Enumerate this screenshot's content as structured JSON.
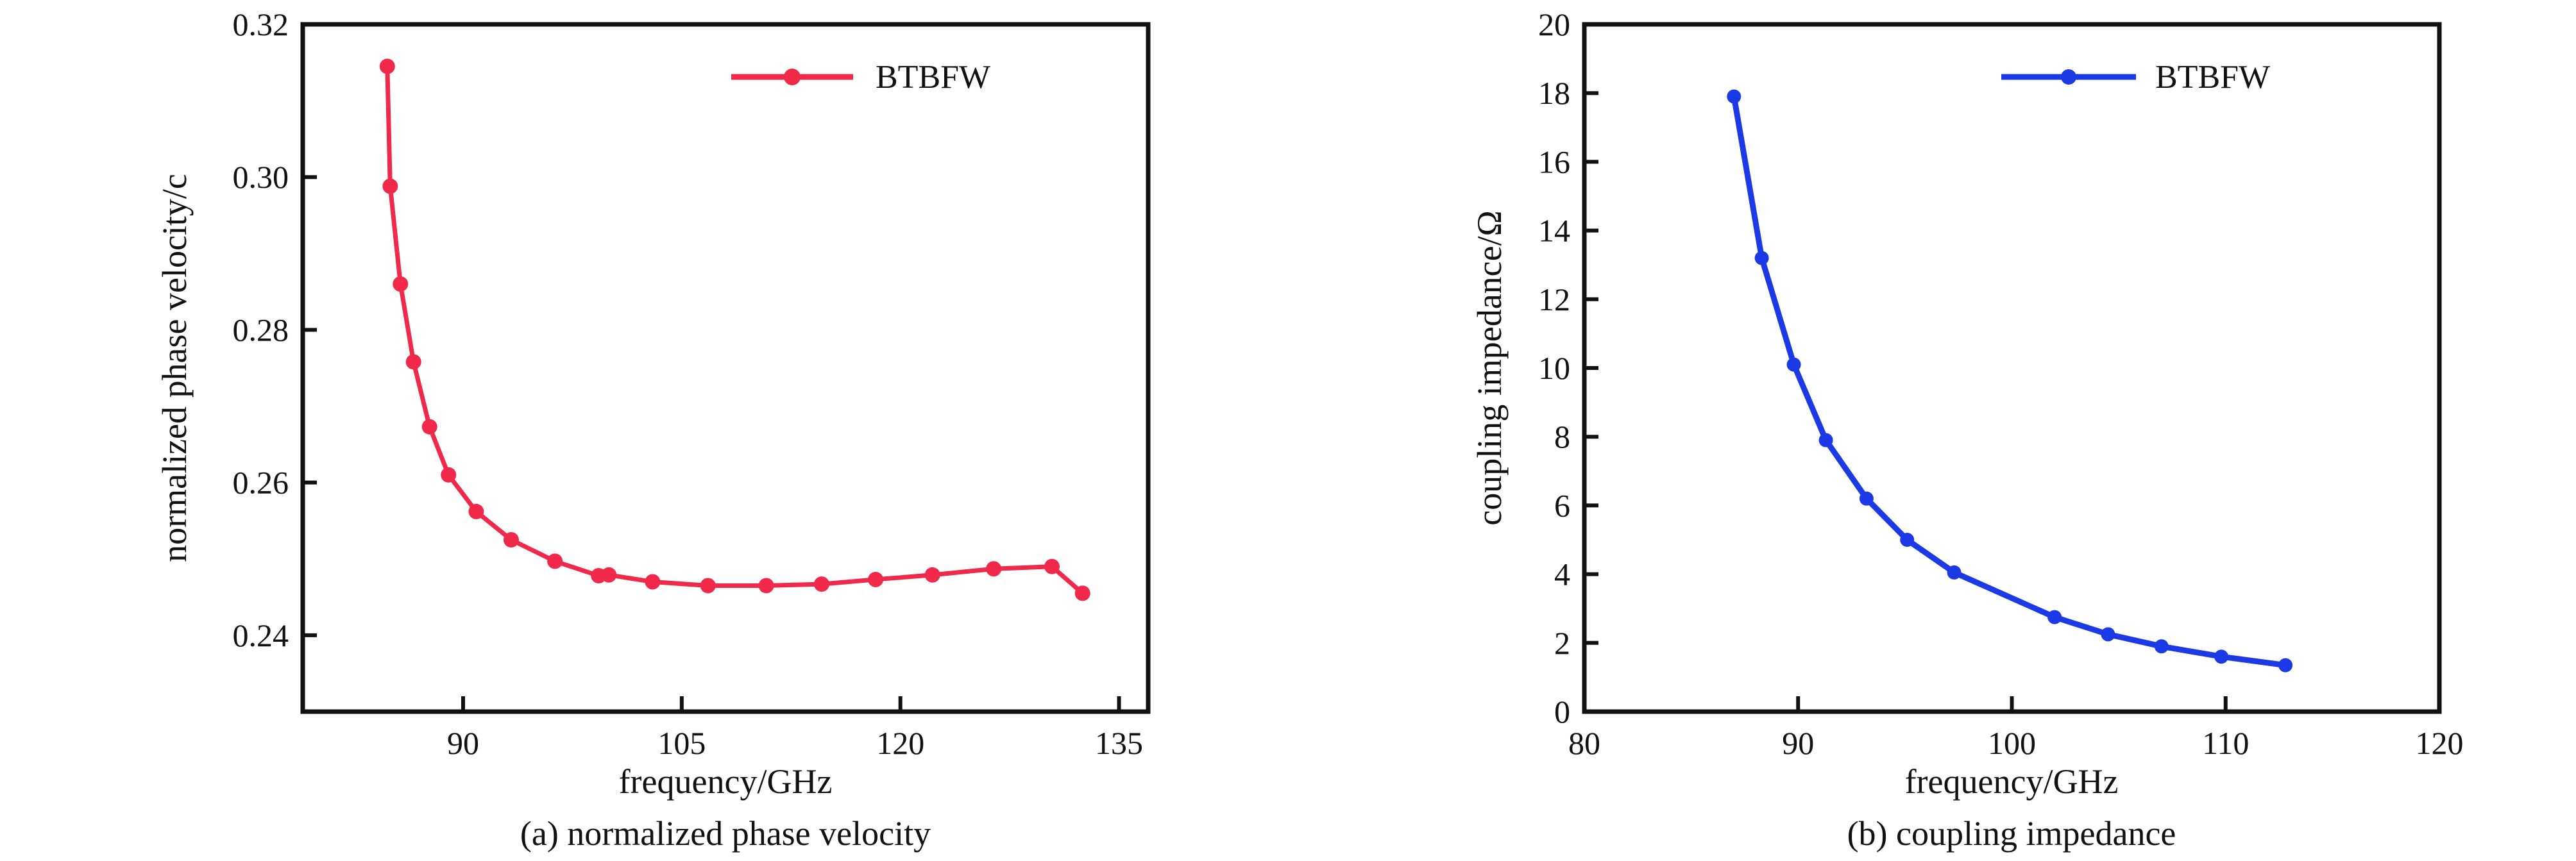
{
  "chart_data": [
    {
      "type": "line",
      "caption": "(a) normalized phase velocity",
      "xlabel": "frequency/GHz",
      "ylabel": "normalized phase velocity/c",
      "xlim": [
        79,
        137
      ],
      "ylim": [
        0.23,
        0.32
      ],
      "xticks": [
        90,
        105,
        120,
        135
      ],
      "yticks": [
        0.24,
        0.26,
        0.28,
        0.3,
        0.32
      ],
      "legend": "top-right",
      "grid": false,
      "series": [
        {
          "name": "BTBFW",
          "color": "#f0284a",
          "x": [
            84.8,
            85.0,
            85.7,
            86.6,
            87.7,
            89.0,
            90.9,
            93.3,
            96.3,
            99.3,
            100.0,
            103.0,
            106.8,
            110.8,
            114.6,
            118.3,
            122.2,
            126.4,
            130.4,
            132.5
          ],
          "y": [
            0.3145,
            0.2988,
            0.286,
            0.2758,
            0.2673,
            0.261,
            0.2562,
            0.2525,
            0.2497,
            0.2478,
            0.2479,
            0.247,
            0.2465,
            0.2465,
            0.2467,
            0.2473,
            0.2479,
            0.2487,
            0.249,
            0.2455
          ]
        }
      ]
    },
    {
      "type": "line",
      "caption": "(b) coupling impedance",
      "xlabel": "frequency/GHz",
      "ylabel": "coupling impedance/Ω",
      "xlim": [
        80,
        120
      ],
      "ylim": [
        0,
        20
      ],
      "xticks": [
        80,
        90,
        100,
        110,
        120
      ],
      "yticks": [
        0,
        2,
        4,
        6,
        8,
        10,
        12,
        14,
        16,
        18,
        20
      ],
      "legend": "top-right",
      "grid": false,
      "series": [
        {
          "name": "BTBFW",
          "color": "#1c39e6",
          "x": [
            87.0,
            88.3,
            89.8,
            91.3,
            93.2,
            95.1,
            97.3,
            102.0,
            104.5,
            107.0,
            109.8,
            112.8
          ],
          "y": [
            17.9,
            13.2,
            10.1,
            7.9,
            6.2,
            5.0,
            4.05,
            2.75,
            2.25,
            1.9,
            1.6,
            1.35
          ]
        }
      ]
    }
  ]
}
